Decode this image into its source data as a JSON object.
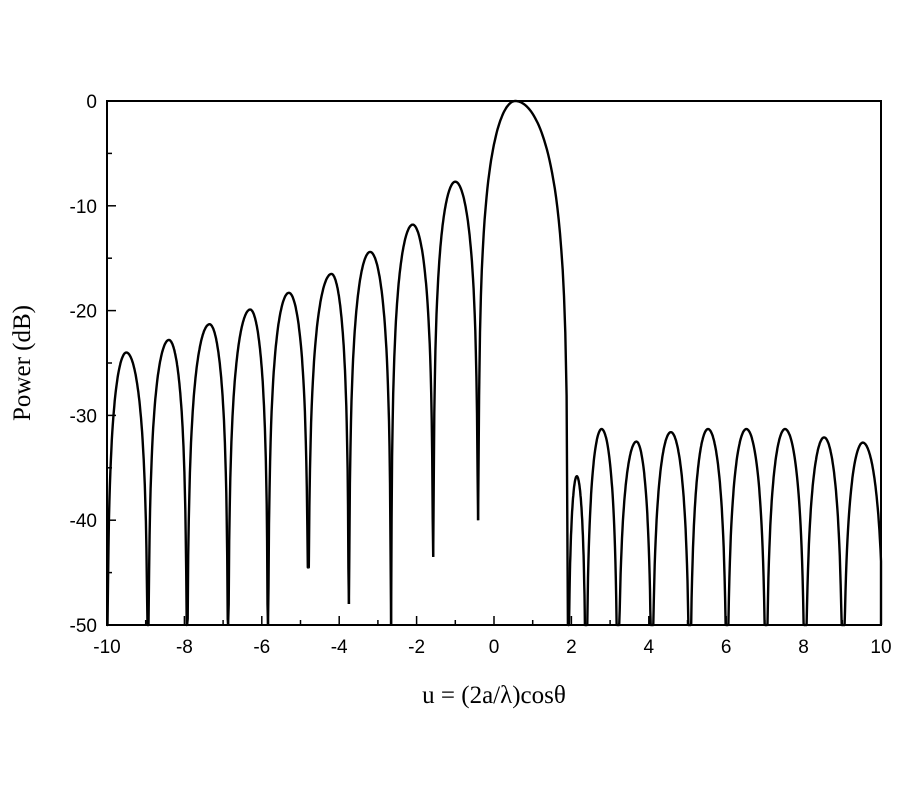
{
  "chart_data": {
    "type": "line",
    "title": "",
    "xlabel": "u = (2a/λ)cosθ",
    "ylabel": "Power (dB)",
    "xlim": [
      -10,
      10
    ],
    "ylim": [
      -50,
      0
    ],
    "xticks": [
      "-10",
      "-8",
      "-6",
      "-4",
      "-2",
      "0",
      "2",
      "4",
      "6",
      "8",
      "10"
    ],
    "yticks": [
      "0",
      "-10",
      "-20",
      "-30",
      "-40",
      "-50"
    ],
    "grid": false,
    "line_color": "#000000",
    "nulls": [
      {
        "u": -10.0,
        "db": -50
      },
      {
        "u": -8.94,
        "db": -50
      },
      {
        "u": -7.93,
        "db": -50
      },
      {
        "u": -6.87,
        "db": -50
      },
      {
        "u": -5.84,
        "db": -50
      },
      {
        "u": -4.8,
        "db": -44.5
      },
      {
        "u": -3.75,
        "db": -48
      },
      {
        "u": -2.66,
        "db": -50
      },
      {
        "u": -1.57,
        "db": -43.5
      },
      {
        "u": -0.41,
        "db": -40
      },
      {
        "u": 1.91,
        "db": -50
      },
      {
        "u": 2.38,
        "db": -50
      },
      {
        "u": 3.2,
        "db": -50
      },
      {
        "u": 4.08,
        "db": -50
      },
      {
        "u": 5.06,
        "db": -50
      },
      {
        "u": 6.02,
        "db": -50
      },
      {
        "u": 7.03,
        "db": -50
      },
      {
        "u": 8.04,
        "db": -50
      },
      {
        "u": 9.02,
        "db": -50
      },
      {
        "u": 10.1,
        "db": -50
      }
    ],
    "peaks": [
      {
        "u": -9.5,
        "db": -24.0
      },
      {
        "u": -8.4,
        "db": -22.8
      },
      {
        "u": -7.35,
        "db": -21.3
      },
      {
        "u": -6.3,
        "db": -19.9
      },
      {
        "u": -5.3,
        "db": -18.3
      },
      {
        "u": -4.2,
        "db": -16.5
      },
      {
        "u": -3.2,
        "db": -14.4
      },
      {
        "u": -2.1,
        "db": -11.8
      },
      {
        "u": -1.0,
        "db": -7.7
      },
      {
        "u": 0.55,
        "db": 0.0
      },
      {
        "u": 2.14,
        "db": -35.8
      },
      {
        "u": 2.78,
        "db": -31.3
      },
      {
        "u": 3.68,
        "db": -32.5
      },
      {
        "u": 4.57,
        "db": -31.6
      },
      {
        "u": 5.53,
        "db": -31.3
      },
      {
        "u": 6.52,
        "db": -31.3
      },
      {
        "u": 7.52,
        "db": -31.3
      },
      {
        "u": 8.53,
        "db": -32.1
      },
      {
        "u": 9.53,
        "db": -32.6
      }
    ]
  }
}
